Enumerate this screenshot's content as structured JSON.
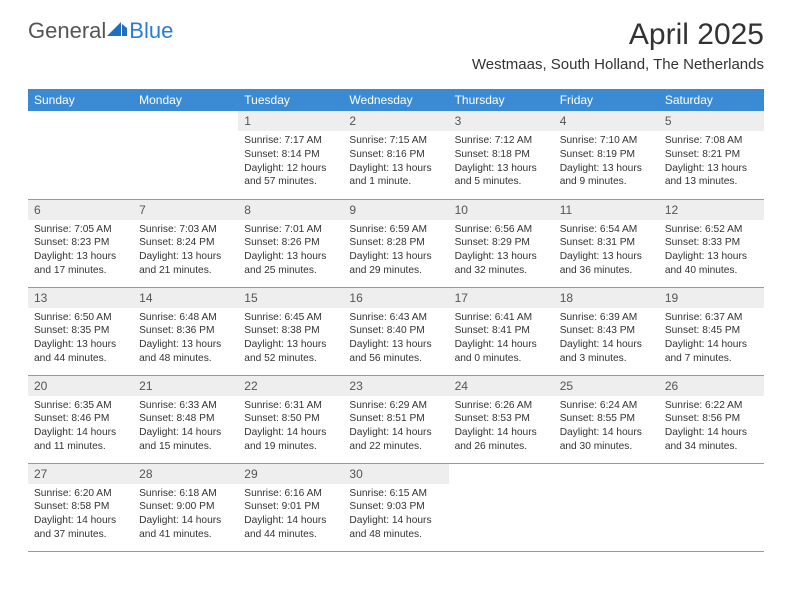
{
  "logo": {
    "text1": "General",
    "text2": "Blue"
  },
  "title": "April 2025",
  "location": "Westmaas, South Holland, The Netherlands",
  "colors": {
    "header_bg": "#3b8bd4",
    "header_text": "#ffffff",
    "daynum_bg": "#eeeeee",
    "border": "#999999",
    "logo_blue": "#2b7cd3",
    "logo_gray": "#555555"
  },
  "dayNames": [
    "Sunday",
    "Monday",
    "Tuesday",
    "Wednesday",
    "Thursday",
    "Friday",
    "Saturday"
  ],
  "weeks": [
    [
      null,
      null,
      {
        "n": "1",
        "sr": "7:17 AM",
        "ss": "8:14 PM",
        "dl": "12 hours and 57 minutes."
      },
      {
        "n": "2",
        "sr": "7:15 AM",
        "ss": "8:16 PM",
        "dl": "13 hours and 1 minute."
      },
      {
        "n": "3",
        "sr": "7:12 AM",
        "ss": "8:18 PM",
        "dl": "13 hours and 5 minutes."
      },
      {
        "n": "4",
        "sr": "7:10 AM",
        "ss": "8:19 PM",
        "dl": "13 hours and 9 minutes."
      },
      {
        "n": "5",
        "sr": "7:08 AM",
        "ss": "8:21 PM",
        "dl": "13 hours and 13 minutes."
      }
    ],
    [
      {
        "n": "6",
        "sr": "7:05 AM",
        "ss": "8:23 PM",
        "dl": "13 hours and 17 minutes."
      },
      {
        "n": "7",
        "sr": "7:03 AM",
        "ss": "8:24 PM",
        "dl": "13 hours and 21 minutes."
      },
      {
        "n": "8",
        "sr": "7:01 AM",
        "ss": "8:26 PM",
        "dl": "13 hours and 25 minutes."
      },
      {
        "n": "9",
        "sr": "6:59 AM",
        "ss": "8:28 PM",
        "dl": "13 hours and 29 minutes."
      },
      {
        "n": "10",
        "sr": "6:56 AM",
        "ss": "8:29 PM",
        "dl": "13 hours and 32 minutes."
      },
      {
        "n": "11",
        "sr": "6:54 AM",
        "ss": "8:31 PM",
        "dl": "13 hours and 36 minutes."
      },
      {
        "n": "12",
        "sr": "6:52 AM",
        "ss": "8:33 PM",
        "dl": "13 hours and 40 minutes."
      }
    ],
    [
      {
        "n": "13",
        "sr": "6:50 AM",
        "ss": "8:35 PM",
        "dl": "13 hours and 44 minutes."
      },
      {
        "n": "14",
        "sr": "6:48 AM",
        "ss": "8:36 PM",
        "dl": "13 hours and 48 minutes."
      },
      {
        "n": "15",
        "sr": "6:45 AM",
        "ss": "8:38 PM",
        "dl": "13 hours and 52 minutes."
      },
      {
        "n": "16",
        "sr": "6:43 AM",
        "ss": "8:40 PM",
        "dl": "13 hours and 56 minutes."
      },
      {
        "n": "17",
        "sr": "6:41 AM",
        "ss": "8:41 PM",
        "dl": "14 hours and 0 minutes."
      },
      {
        "n": "18",
        "sr": "6:39 AM",
        "ss": "8:43 PM",
        "dl": "14 hours and 3 minutes."
      },
      {
        "n": "19",
        "sr": "6:37 AM",
        "ss": "8:45 PM",
        "dl": "14 hours and 7 minutes."
      }
    ],
    [
      {
        "n": "20",
        "sr": "6:35 AM",
        "ss": "8:46 PM",
        "dl": "14 hours and 11 minutes."
      },
      {
        "n": "21",
        "sr": "6:33 AM",
        "ss": "8:48 PM",
        "dl": "14 hours and 15 minutes."
      },
      {
        "n": "22",
        "sr": "6:31 AM",
        "ss": "8:50 PM",
        "dl": "14 hours and 19 minutes."
      },
      {
        "n": "23",
        "sr": "6:29 AM",
        "ss": "8:51 PM",
        "dl": "14 hours and 22 minutes."
      },
      {
        "n": "24",
        "sr": "6:26 AM",
        "ss": "8:53 PM",
        "dl": "14 hours and 26 minutes."
      },
      {
        "n": "25",
        "sr": "6:24 AM",
        "ss": "8:55 PM",
        "dl": "14 hours and 30 minutes."
      },
      {
        "n": "26",
        "sr": "6:22 AM",
        "ss": "8:56 PM",
        "dl": "14 hours and 34 minutes."
      }
    ],
    [
      {
        "n": "27",
        "sr": "6:20 AM",
        "ss": "8:58 PM",
        "dl": "14 hours and 37 minutes."
      },
      {
        "n": "28",
        "sr": "6:18 AM",
        "ss": "9:00 PM",
        "dl": "14 hours and 41 minutes."
      },
      {
        "n": "29",
        "sr": "6:16 AM",
        "ss": "9:01 PM",
        "dl": "14 hours and 44 minutes."
      },
      {
        "n": "30",
        "sr": "6:15 AM",
        "ss": "9:03 PM",
        "dl": "14 hours and 48 minutes."
      },
      null,
      null,
      null
    ]
  ]
}
